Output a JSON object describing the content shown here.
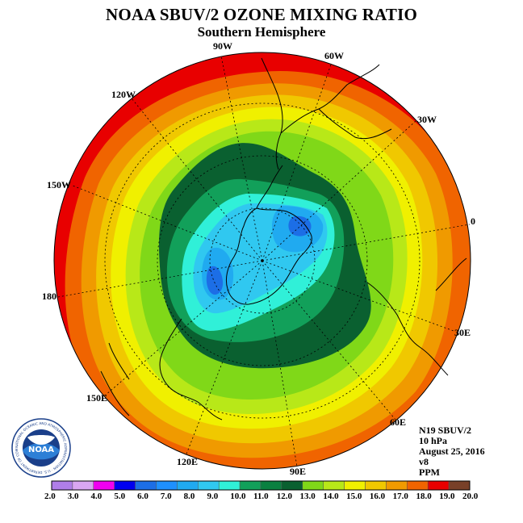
{
  "header": {
    "title": "NOAA SBUV/2 OZONE MIXING RATIO",
    "subtitle": "Southern Hemisphere"
  },
  "longitude_labels": [
    "90W",
    "60W",
    "30W",
    "0",
    "30E",
    "60E",
    "90E",
    "120E",
    "150E",
    "180",
    "150W",
    "120W"
  ],
  "info": {
    "instrument": "N19 SBUV/2",
    "level": "10 hPa",
    "date": "August 25, 2016",
    "version": "v8",
    "units": "PPM"
  },
  "logo": {
    "text": "NOAA",
    "ring_text": "NATIONAL OCEANIC AND ATMOSPHERIC ADMINISTRATION · U.S. DEPARTMENT OF COMMERCE"
  },
  "colorbar": {
    "labels": [
      "2.0",
      "3.0",
      "4.0",
      "5.0",
      "6.0",
      "7.0",
      "8.0",
      "9.0",
      "10.0",
      "11.0",
      "12.0",
      "13.0",
      "14.0",
      "15.0",
      "16.0",
      "17.0",
      "18.0",
      "19.0",
      "20.0"
    ],
    "colors": [
      "#b07ee8",
      "#d9a6f2",
      "#f000f0",
      "#0000f0",
      "#1c6ee6",
      "#1e90ff",
      "#20aaf0",
      "#30c8f0",
      "#30f0d8",
      "#12a05a",
      "#0a8040",
      "#0a6030",
      "#80d818",
      "#b8e818",
      "#f0f000",
      "#f0c800",
      "#f09a00",
      "#f06400",
      "#e80000",
      "#784028"
    ]
  },
  "ozone_field": {
    "bands": [
      {
        "level": "18.0+",
        "color": "#e80000"
      },
      {
        "level": "17.0-18.0",
        "color": "#f06400"
      },
      {
        "level": "16.0-17.0",
        "color": "#f09a00"
      },
      {
        "level": "15.0-16.0",
        "color": "#f0c800"
      },
      {
        "level": "14.0-15.0",
        "color": "#f0f000"
      },
      {
        "level": "13.0-14.0",
        "color": "#b8e818"
      },
      {
        "level": "12.0-13.0",
        "color": "#80d818"
      },
      {
        "level": "11.0-12.0",
        "color": "#0a6030"
      },
      {
        "level": "10.0-11.0",
        "color": "#12a05a"
      },
      {
        "level": "9.0-10.0",
        "color": "#30f0d8"
      },
      {
        "level": "8.0-9.0",
        "color": "#30c8f0"
      },
      {
        "level": "7.0-8.0",
        "color": "#20aaf0"
      },
      {
        "level": "6.0-7.0",
        "color": "#1c6ee6"
      }
    ]
  }
}
